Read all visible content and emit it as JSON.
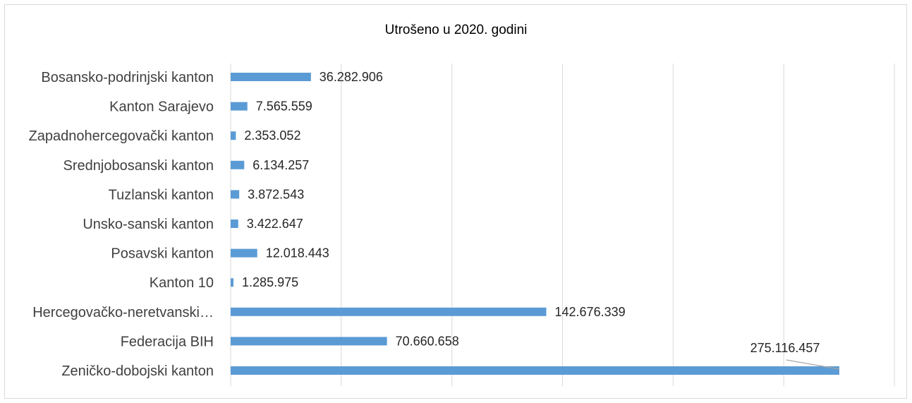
{
  "chart_data": {
    "type": "bar",
    "orientation": "horizontal",
    "title": "Utrošeno u 2020. godini",
    "categories": [
      "Bosansko-podrinjski kanton",
      "Kanton Sarajevo",
      "Zapadnohercegovački kanton",
      "Srednjobosanski kanton",
      "Tuzlanski  kanton",
      "Unsko-sanski kanton",
      "Posavski kanton",
      "Kanton 10",
      "Hercegovačko-neretvanski…",
      "Federacija BIH",
      "Zeničko-dobojski kanton"
    ],
    "values": [
      36282906,
      7565559,
      2353052,
      6134257,
      3872543,
      3422647,
      12018443,
      1285975,
      142676339,
      70660658,
      275116457
    ],
    "data_labels": [
      "36.282.906",
      "7.565.559",
      "2.353.052",
      "6.134.257",
      "3.872.543",
      "3.422.647",
      "12.018.443",
      "1.285.975",
      "142.676.339",
      "70.660.658",
      "275.116.457"
    ],
    "xlim": [
      0,
      300000000
    ],
    "grid": true,
    "legend": "none",
    "bar_color": "#5b9bd5"
  }
}
